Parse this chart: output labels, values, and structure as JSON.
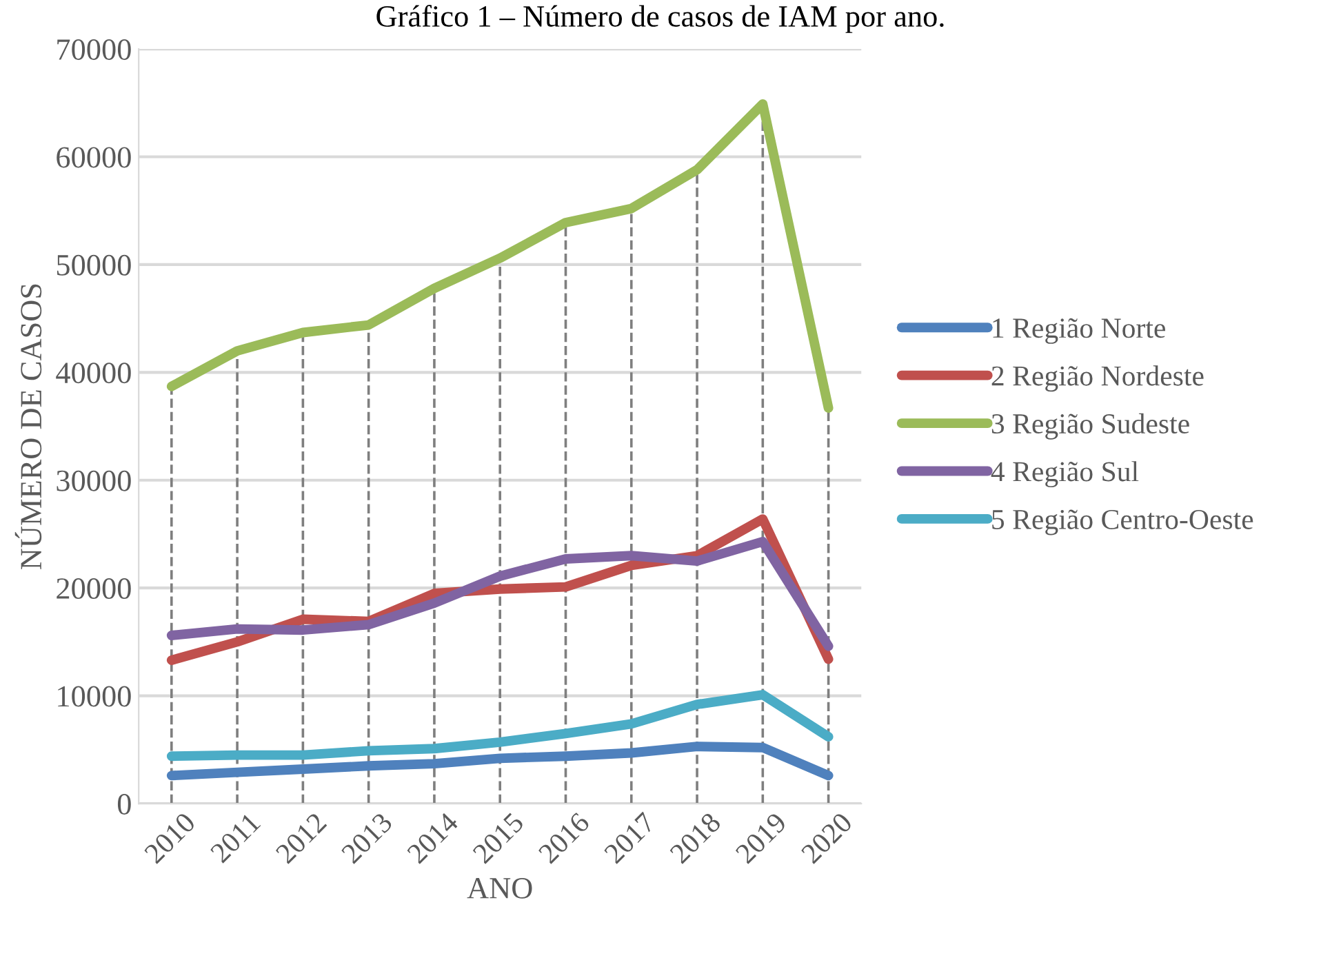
{
  "chart_data": {
    "type": "line",
    "title": "Gráfico 1 – Número de casos de IAM por ano.",
    "xlabel": "ANO",
    "ylabel": "NÚMERO DE CASOS",
    "x": [
      2010,
      2011,
      2012,
      2013,
      2014,
      2015,
      2016,
      2017,
      2018,
      2019,
      2020
    ],
    "xlim": [
      2009.5,
      2020.5
    ],
    "xticks": [
      2010,
      2011,
      2012,
      2013,
      2014,
      2015,
      2016,
      2017,
      2018,
      2019,
      2020
    ],
    "ylim": [
      0,
      70000
    ],
    "yticks": [
      0,
      10000,
      20000,
      30000,
      40000,
      50000,
      60000,
      70000
    ],
    "grid": "y",
    "legend": "right",
    "marker": "none",
    "line_style": "solid",
    "series": [
      {
        "name": "1 Região Norte",
        "color": "#4f81bd",
        "values": [
          2600,
          2900,
          3200,
          3500,
          3700,
          4200,
          4400,
          4700,
          5300,
          5200,
          2600
        ]
      },
      {
        "name": "2 Região Nordeste",
        "color": "#c0504d",
        "values": [
          13300,
          15000,
          17100,
          16900,
          19500,
          19900,
          20100,
          22100,
          23000,
          26400,
          13400
        ]
      },
      {
        "name": "3 Região Sudeste",
        "color": "#9bbb59",
        "values": [
          38700,
          42000,
          43700,
          44400,
          47800,
          50600,
          53900,
          55200,
          58800,
          64900,
          36700
        ]
      },
      {
        "name": "4 Região Sul",
        "color": "#8064a2",
        "values": [
          15600,
          16200,
          16100,
          16600,
          18600,
          21100,
          22700,
          23000,
          22500,
          24300,
          14600
        ]
      },
      {
        "name": "5 Região Centro-Oeste",
        "color": "#4bacc6",
        "values": [
          4400,
          4500,
          4500,
          4900,
          5100,
          5700,
          6500,
          7400,
          9200,
          10100,
          6200
        ]
      }
    ],
    "ref_lines": [
      {
        "axis": "x",
        "value": 2010,
        "line_style": "dashed",
        "color": "#7f7f7f"
      },
      {
        "axis": "x",
        "value": 2011,
        "line_style": "dashed",
        "color": "#7f7f7f"
      },
      {
        "axis": "x",
        "value": 2012,
        "line_style": "dashed",
        "color": "#7f7f7f"
      },
      {
        "axis": "x",
        "value": 2013,
        "line_style": "dashed",
        "color": "#7f7f7f"
      },
      {
        "axis": "x",
        "value": 2014,
        "line_style": "dashed",
        "color": "#7f7f7f"
      },
      {
        "axis": "x",
        "value": 2015,
        "line_style": "dashed",
        "color": "#7f7f7f"
      },
      {
        "axis": "x",
        "value": 2016,
        "line_style": "dashed",
        "color": "#7f7f7f"
      },
      {
        "axis": "x",
        "value": 2017,
        "line_style": "dashed",
        "color": "#7f7f7f"
      },
      {
        "axis": "x",
        "value": 2018,
        "line_style": "dashed",
        "color": "#7f7f7f"
      },
      {
        "axis": "x",
        "value": 2019,
        "line_style": "dashed",
        "color": "#7f7f7f"
      },
      {
        "axis": "x",
        "value": 2020,
        "line_style": "dashed",
        "color": "#7f7f7f"
      }
    ]
  }
}
